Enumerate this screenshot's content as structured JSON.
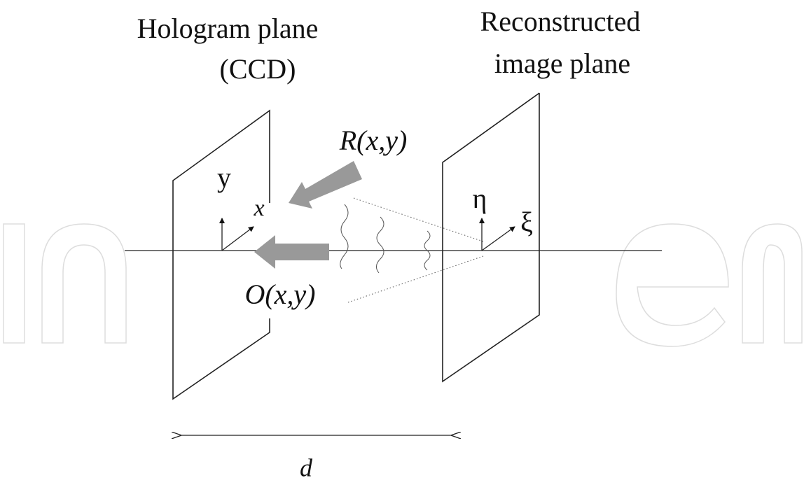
{
  "labels": {
    "hologram_plane": [
      "Hologram plane",
      "(CCD)"
    ],
    "image_plane": [
      "Reconstructed",
      "image plane"
    ],
    "reference_wave": "R(x,y)",
    "object_wave": "O(x,y)",
    "hologram_y": "y",
    "hologram_x": "x",
    "image_eta": "η",
    "image_xi": "ξ",
    "distance": "d"
  }
}
